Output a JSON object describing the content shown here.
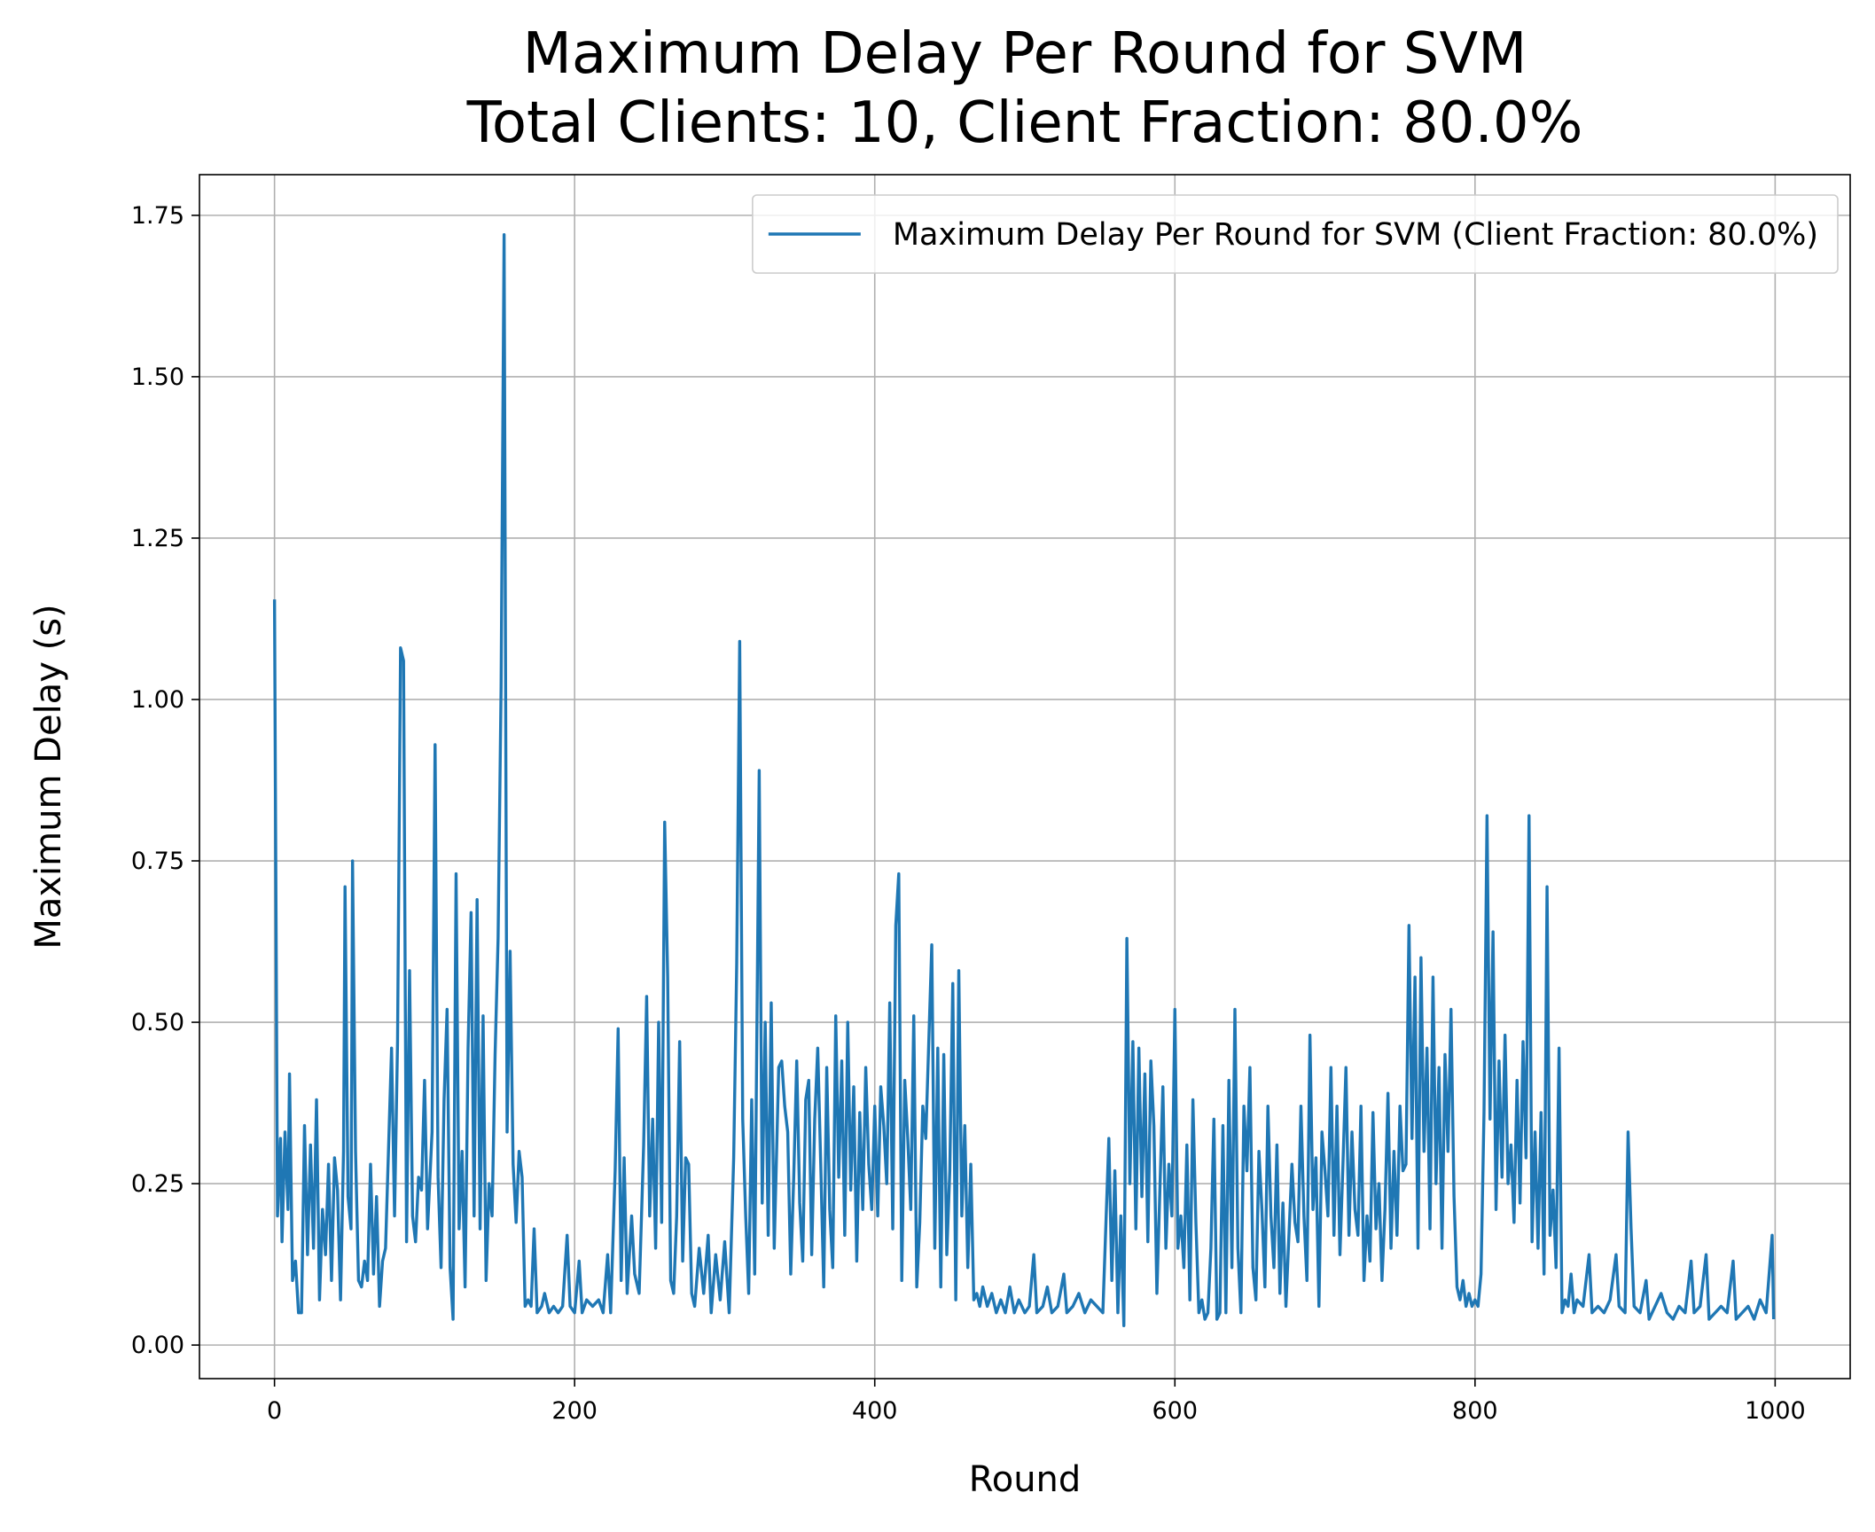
{
  "chart_data": {
    "type": "line",
    "title": "Maximum Delay Per Round for SVM\nTotal Clients: 10, Client Fraction: 80.0%",
    "x_label": "Round",
    "y_label": "Maximum Delay (s)",
    "xlim": [
      -50,
      1050
    ],
    "ylim": [
      -0.052,
      1.813
    ],
    "xticks": [
      0,
      200,
      400,
      600,
      800,
      1000
    ],
    "yticks": [
      {
        "value": 0,
        "label": "0.00"
      },
      {
        "value": 0.25,
        "label": "0.25"
      },
      {
        "value": 0.5,
        "label": "0.50"
      },
      {
        "value": 0.75,
        "label": "0.75"
      },
      {
        "value": 1,
        "label": "1.00"
      },
      {
        "value": 1.25,
        "label": "1.25"
      },
      {
        "value": 1.5,
        "label": "1.50"
      },
      {
        "value": 1.75,
        "label": "1.75"
      }
    ],
    "grid": true,
    "legend_position": "upper right",
    "x": [
      0,
      2,
      4,
      5,
      7,
      9,
      10,
      12,
      14,
      16,
      18,
      20,
      22,
      24,
      26,
      28,
      30,
      32,
      34,
      36,
      38,
      40,
      42,
      44,
      46,
      47,
      49,
      51,
      52,
      54,
      56,
      58,
      60,
      62,
      64,
      66,
      68,
      70,
      72,
      74,
      78,
      80,
      82,
      84,
      86,
      88,
      90,
      92,
      94,
      96,
      98,
      100,
      102,
      105,
      107,
      109,
      111,
      113,
      115,
      117,
      119,
      121,
      123,
      125,
      127,
      129,
      131,
      133,
      135,
      137,
      139,
      141,
      143,
      145,
      147,
      149,
      151,
      153,
      155,
      157,
      159,
      161,
      163,
      165,
      167,
      169,
      171,
      173,
      175,
      178,
      180,
      183,
      186,
      189,
      192,
      195,
      197,
      200,
      203,
      205,
      208,
      212,
      216,
      219,
      222,
      224,
      227,
      229,
      231,
      233,
      235,
      238,
      240,
      243,
      246,
      248,
      250,
      252,
      254,
      256,
      258,
      260,
      262,
      264,
      266,
      268,
      270,
      272,
      274,
      276,
      278,
      280,
      283,
      286,
      289,
      291,
      294,
      297,
      300,
      303,
      306,
      308,
      310,
      312,
      314,
      316,
      318,
      320,
      323,
      325,
      327,
      329,
      331,
      333,
      336,
      338,
      340,
      342,
      344,
      346,
      348,
      350,
      352,
      354,
      356,
      358,
      360,
      362,
      364,
      366,
      368,
      370,
      372,
      374,
      376,
      378,
      380,
      382,
      384,
      386,
      388,
      390,
      392,
      394,
      396,
      398,
      400,
      402,
      404,
      406,
      408,
      410,
      412,
      414,
      416,
      418,
      420,
      422,
      424,
      426,
      428,
      430,
      432,
      434,
      436,
      438,
      440,
      442,
      444,
      446,
      448,
      450,
      452,
      454,
      456,
      458,
      460,
      462,
      464,
      466,
      468,
      470,
      472,
      475,
      478,
      481,
      484,
      487,
      490,
      493,
      496,
      500,
      503,
      506,
      508,
      512,
      515,
      518,
      522,
      526,
      528,
      532,
      536,
      540,
      544,
      548,
      552,
      556,
      558,
      560,
      562,
      564,
      566,
      568,
      570,
      572,
      574,
      576,
      578,
      580,
      582,
      584,
      586,
      588,
      590,
      592,
      594,
      596,
      598,
      600,
      602,
      604,
      606,
      608,
      610,
      612,
      614,
      616,
      618,
      620,
      622,
      624,
      626,
      628,
      630,
      632,
      634,
      636,
      638,
      640,
      642,
      644,
      646,
      648,
      650,
      652,
      654,
      656,
      658,
      660,
      662,
      664,
      666,
      668,
      670,
      672,
      674,
      676,
      678,
      680,
      682,
      684,
      686,
      688,
      690,
      692,
      694,
      696,
      698,
      700,
      702,
      704,
      706,
      708,
      710,
      712,
      714,
      716,
      718,
      720,
      722,
      724,
      726,
      728,
      730,
      732,
      734,
      736,
      738,
      740,
      742,
      744,
      746,
      748,
      750,
      752,
      754,
      756,
      758,
      760,
      762,
      764,
      766,
      768,
      770,
      772,
      774,
      776,
      778,
      780,
      782,
      784,
      786,
      788,
      790,
      792,
      794,
      796,
      798,
      800,
      802,
      804,
      806,
      808,
      810,
      812,
      814,
      816,
      818,
      820,
      822,
      824,
      826,
      828,
      830,
      832,
      834,
      836,
      838,
      840,
      842,
      844,
      846,
      848,
      850,
      852,
      854,
      856,
      858,
      860,
      862,
      864,
      866,
      868,
      872,
      876,
      878,
      882,
      886,
      890,
      894,
      896,
      900,
      902,
      904,
      906,
      910,
      914,
      916,
      920,
      924,
      928,
      932,
      936,
      940,
      944,
      946,
      950,
      954,
      956,
      960,
      964,
      968,
      972,
      974,
      978,
      982,
      986,
      990,
      994,
      998,
      999
    ],
    "series": [
      {
        "name": "Maximum Delay Per Round for SVM (Client Fraction: 80.0%)",
        "color": "#1f77b4",
        "values": [
          1.155,
          0.2,
          0.32,
          0.16,
          0.33,
          0.21,
          0.42,
          0.1,
          0.13,
          0.05,
          0.05,
          0.34,
          0.14,
          0.31,
          0.15,
          0.38,
          0.07,
          0.21,
          0.14,
          0.28,
          0.1,
          0.29,
          0.24,
          0.07,
          0.3,
          0.71,
          0.23,
          0.18,
          0.75,
          0.3,
          0.1,
          0.09,
          0.13,
          0.1,
          0.28,
          0.11,
          0.23,
          0.06,
          0.13,
          0.15,
          0.46,
          0.2,
          0.47,
          1.08,
          1.06,
          0.16,
          0.58,
          0.2,
          0.16,
          0.26,
          0.24,
          0.41,
          0.18,
          0.33,
          0.93,
          0.26,
          0.12,
          0.38,
          0.52,
          0.12,
          0.04,
          0.73,
          0.18,
          0.3,
          0.09,
          0.46,
          0.67,
          0.2,
          0.69,
          0.18,
          0.51,
          0.1,
          0.25,
          0.2,
          0.45,
          0.63,
          1.02,
          1.72,
          0.33,
          0.61,
          0.28,
          0.19,
          0.3,
          0.26,
          0.06,
          0.07,
          0.06,
          0.18,
          0.05,
          0.06,
          0.08,
          0.05,
          0.06,
          0.05,
          0.06,
          0.17,
          0.06,
          0.05,
          0.13,
          0.05,
          0.07,
          0.06,
          0.07,
          0.05,
          0.14,
          0.05,
          0.27,
          0.49,
          0.1,
          0.29,
          0.08,
          0.2,
          0.11,
          0.08,
          0.31,
          0.54,
          0.2,
          0.35,
          0.15,
          0.5,
          0.19,
          0.81,
          0.57,
          0.1,
          0.08,
          0.2,
          0.47,
          0.13,
          0.29,
          0.28,
          0.08,
          0.06,
          0.15,
          0.08,
          0.17,
          0.05,
          0.14,
          0.07,
          0.16,
          0.05,
          0.29,
          0.59,
          1.09,
          0.35,
          0.2,
          0.08,
          0.38,
          0.11,
          0.89,
          0.22,
          0.5,
          0.17,
          0.53,
          0.15,
          0.43,
          0.44,
          0.37,
          0.33,
          0.11,
          0.26,
          0.44,
          0.22,
          0.13,
          0.38,
          0.41,
          0.14,
          0.35,
          0.46,
          0.28,
          0.09,
          0.43,
          0.21,
          0.12,
          0.51,
          0.26,
          0.44,
          0.17,
          0.5,
          0.24,
          0.4,
          0.13,
          0.36,
          0.21,
          0.43,
          0.28,
          0.21,
          0.37,
          0.2,
          0.4,
          0.34,
          0.25,
          0.53,
          0.18,
          0.65,
          0.73,
          0.1,
          0.41,
          0.32,
          0.21,
          0.51,
          0.09,
          0.19,
          0.37,
          0.32,
          0.47,
          0.62,
          0.15,
          0.46,
          0.09,
          0.45,
          0.14,
          0.27,
          0.56,
          0.07,
          0.58,
          0.2,
          0.34,
          0.12,
          0.28,
          0.07,
          0.08,
          0.06,
          0.09,
          0.06,
          0.08,
          0.05,
          0.07,
          0.05,
          0.09,
          0.05,
          0.07,
          0.05,
          0.06,
          0.14,
          0.05,
          0.06,
          0.09,
          0.05,
          0.06,
          0.11,
          0.05,
          0.06,
          0.08,
          0.05,
          0.07,
          0.06,
          0.05,
          0.32,
          0.1,
          0.27,
          0.05,
          0.2,
          0.03,
          0.63,
          0.25,
          0.47,
          0.18,
          0.46,
          0.23,
          0.42,
          0.16,
          0.44,
          0.34,
          0.08,
          0.24,
          0.4,
          0.15,
          0.28,
          0.2,
          0.52,
          0.15,
          0.2,
          0.12,
          0.31,
          0.07,
          0.38,
          0.19,
          0.05,
          0.07,
          0.04,
          0.05,
          0.15,
          0.35,
          0.04,
          0.05,
          0.34,
          0.05,
          0.41,
          0.12,
          0.52,
          0.15,
          0.05,
          0.37,
          0.27,
          0.43,
          0.12,
          0.07,
          0.3,
          0.21,
          0.09,
          0.37,
          0.2,
          0.12,
          0.31,
          0.08,
          0.22,
          0.06,
          0.17,
          0.28,
          0.19,
          0.16,
          0.37,
          0.2,
          0.1,
          0.48,
          0.21,
          0.29,
          0.06,
          0.33,
          0.27,
          0.2,
          0.43,
          0.17,
          0.37,
          0.14,
          0.28,
          0.43,
          0.17,
          0.33,
          0.21,
          0.17,
          0.37,
          0.1,
          0.2,
          0.13,
          0.36,
          0.18,
          0.25,
          0.1,
          0.21,
          0.39,
          0.15,
          0.3,
          0.17,
          0.37,
          0.27,
          0.28,
          0.65,
          0.32,
          0.57,
          0.15,
          0.6,
          0.3,
          0.46,
          0.18,
          0.57,
          0.25,
          0.43,
          0.15,
          0.45,
          0.3,
          0.52,
          0.23,
          0.09,
          0.07,
          0.1,
          0.06,
          0.08,
          0.06,
          0.07,
          0.06,
          0.11,
          0.36,
          0.82,
          0.35,
          0.64,
          0.21,
          0.44,
          0.26,
          0.48,
          0.25,
          0.31,
          0.19,
          0.41,
          0.22,
          0.47,
          0.29,
          0.82,
          0.16,
          0.33,
          0.15,
          0.36,
          0.11,
          0.71,
          0.17,
          0.24,
          0.12,
          0.46,
          0.05,
          0.07,
          0.06,
          0.11,
          0.05,
          0.07,
          0.06,
          0.14,
          0.05,
          0.06,
          0.05,
          0.07,
          0.14,
          0.06,
          0.05,
          0.33,
          0.18,
          0.06,
          0.05,
          0.1,
          0.04,
          0.06,
          0.08,
          0.05,
          0.04,
          0.06,
          0.05,
          0.13,
          0.05,
          0.06,
          0.14,
          0.04,
          0.05,
          0.06,
          0.05,
          0.13,
          0.04,
          0.05,
          0.06,
          0.04,
          0.07,
          0.05,
          0.17,
          0.04
        ]
      }
    ]
  }
}
